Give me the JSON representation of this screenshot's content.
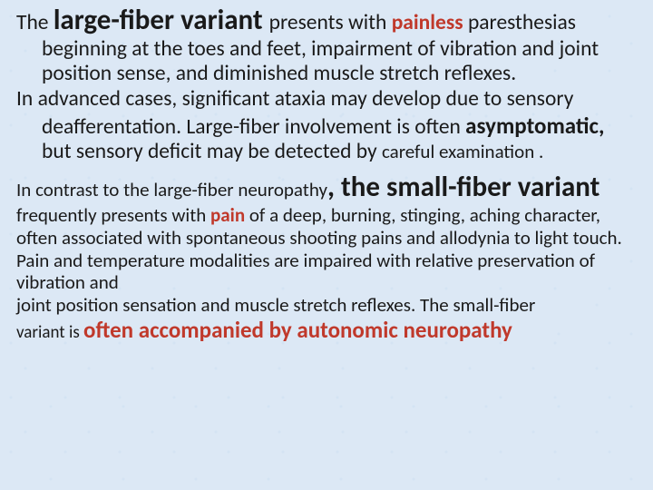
{
  "colors": {
    "background": "#dce8f5",
    "text": "#1a1a1a",
    "emphasis": "#c0392b"
  },
  "typography": {
    "family": "Calibri",
    "sizes_pt": {
      "big": 24,
      "mid": 19,
      "body": 18,
      "body2": 16,
      "small": 14
    },
    "line_height": 1.18
  },
  "p1": {
    "t1": "The ",
    "t2": "large-fiber variant ",
    "t3": "presents with ",
    "t4": "painless",
    "t5": " paresthesias beginning at the toes and feet, impairment of vibration and joint position sense, and diminished muscle stretch reflexes."
  },
  "p2": {
    "t1": "In advanced cases, significant ataxia may develop due to sensory deafferentation.  Large-fiber involvement is often ",
    "t2": "asymptomatic,",
    "t3": " but sensory deficit may be detected by ",
    "t4": "careful examination ."
  },
  "p3": {
    "t1": "In contrast to the large-fiber neuropathy",
    "t2": ", the small-fiber variant",
    "t3": " frequently presents with ",
    "t4": "pain",
    "t5": " of a deep, burning, stinging, aching character, often associated with spontaneous shooting  pains and allodynia to light touch. Pain and temperature modalities are impaired with relative preservation of vibration and",
    "t6": "joint position sensation and muscle stretch reflexes. The small-fiber ",
    "t7": "variant is ",
    "t8": "often accompanied by autonomic neuropathy"
  }
}
